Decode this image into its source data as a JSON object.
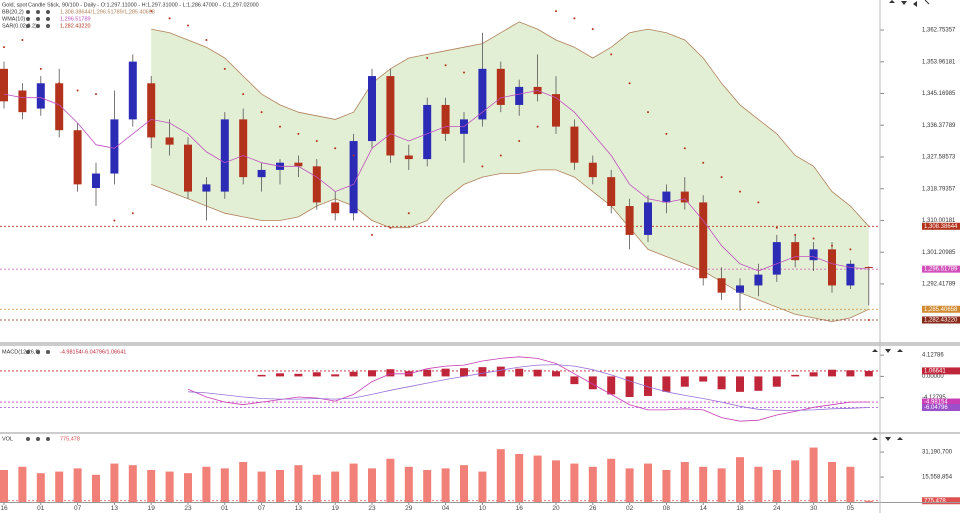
{
  "chart_data": [
    {
      "type": "candlestick",
      "title": "Gold, spot",
      "subtitle": "Candle Stick, 90/100 - Daily - O:1,297.11000 - H:1,297.31000 - L:1,286.47000 - C:1,297.02000",
      "categories": [
        "16",
        null,
        "01",
        null,
        "07",
        null,
        "13",
        null,
        "19",
        null,
        "23",
        null,
        "01",
        null,
        "07",
        null,
        "13",
        null,
        "19",
        null,
        "23",
        null,
        "29",
        null,
        "04",
        null,
        "10",
        null,
        "16",
        null,
        "20",
        null,
        "26",
        null,
        "02",
        null,
        "08",
        null,
        "14",
        null,
        "18",
        null,
        "24",
        null,
        "30",
        null,
        "05",
        null
      ],
      "open": [
        1352,
        1346,
        1341,
        1348,
        1335,
        1319,
        1323,
        1338,
        1348,
        1333,
        1331,
        1318,
        1318,
        1338,
        1322,
        1324,
        1326,
        1325,
        1315,
        1312,
        1332,
        1350,
        1328,
        1327,
        1342,
        1334,
        1338,
        1352,
        1342,
        1347,
        1345,
        1336,
        1326,
        1322,
        1314,
        1306,
        1315,
        1318,
        1315,
        1294,
        1290,
        1292,
        1295,
        1304,
        1299,
        1302,
        1292,
        1297.11
      ],
      "high": [
        1354,
        1348,
        1350,
        1352,
        1337,
        1326,
        1346,
        1356,
        1350,
        1338,
        1333,
        1322,
        1340,
        1341,
        1326,
        1327,
        1328,
        1327,
        1318,
        1334,
        1352,
        1352,
        1331,
        1344,
        1344,
        1340,
        1362,
        1354,
        1349,
        1356,
        1350,
        1338,
        1328,
        1324,
        1316,
        1317,
        1320,
        1322,
        1317,
        1297,
        1294,
        1298,
        1306,
        1306,
        1304,
        1304,
        1299,
        1297.31
      ],
      "low": [
        1341,
        1338,
        1339,
        1333,
        1318,
        1314,
        1320,
        1336,
        1330,
        1328,
        1316,
        1310,
        1316,
        1320,
        1318,
        1320,
        1322,
        1313,
        1310,
        1310,
        1330,
        1326,
        1324,
        1325,
        1332,
        1326,
        1336,
        1340,
        1339,
        1343,
        1334,
        1324,
        1320,
        1312,
        1302,
        1304,
        1312,
        1313,
        1292,
        1288,
        1285,
        1289,
        1293,
        1297,
        1296,
        1290,
        1291,
        1286.47
      ],
      "close": [
        1343,
        1340,
        1348,
        1335,
        1320,
        1323,
        1338,
        1354,
        1333,
        1331,
        1318,
        1320,
        1338,
        1322,
        1324,
        1326,
        1325,
        1315,
        1312,
        1332,
        1350,
        1328,
        1327,
        1342,
        1334,
        1338,
        1352,
        1342,
        1347,
        1345,
        1336,
        1326,
        1322,
        1314,
        1306,
        1315,
        1318,
        1315,
        1294,
        1290,
        1292,
        1295,
        1304,
        1299,
        1302,
        1292,
        1298,
        1297.02
      ],
      "up_color": "#2b2bb5",
      "down_color": "#b3321c",
      "ylim": [
        1276.89,
        1371.07
      ],
      "yticks": [
        {
          "value": 1362.75357,
          "label": "1,362.75357"
        },
        {
          "value": 1353.96181,
          "label": "1,353.96181"
        },
        {
          "value": 1345.16985,
          "label": "1,345.16985"
        },
        {
          "value": 1336.37789,
          "label": "1,336.37789"
        },
        {
          "value": 1327.58573,
          "label": "1,327.58573"
        },
        {
          "value": 1318.79357,
          "label": "1,318.79357"
        },
        {
          "value": 1310.00181,
          "label": "1,310.00181"
        },
        {
          "value": 1301.20985,
          "label": "1,301.20985"
        },
        {
          "value": 1292.41789,
          "label": "1,292.41789"
        }
      ],
      "indicators": [
        {
          "name": "BB(20,2)",
          "value_label": "1,308.38644/1,296.51789/1,285.40658",
          "color": "#b0805a",
          "fill": "#dcebc9",
          "upper": [
            null,
            null,
            null,
            null,
            null,
            null,
            null,
            null,
            1363,
            1362,
            1360,
            1358,
            1355,
            1350,
            1345,
            1342,
            1340,
            1339,
            1338,
            1340,
            1348,
            1352,
            1355,
            1356,
            1357,
            1358,
            1359,
            1362,
            1365,
            1363,
            1360,
            1358,
            1355,
            1358,
            1362,
            1363,
            1362,
            1360,
            1355,
            1348,
            1342,
            1338,
            1334,
            1328,
            1325,
            1318,
            1314,
            1308.38644
          ],
          "lower": [
            null,
            null,
            null,
            null,
            null,
            null,
            null,
            null,
            1320,
            1318,
            1316,
            1314,
            1312,
            1311,
            1310,
            1310,
            1311,
            1314,
            1316,
            1314,
            1310,
            1308,
            1308,
            1310,
            1316,
            1320,
            1322,
            1323,
            1323,
            1324,
            1324,
            1322,
            1318,
            1314,
            1308,
            1302,
            1300,
            1298,
            1296,
            1293,
            1290,
            1288,
            1286,
            1284,
            1283,
            1282,
            1283,
            1285.40658
          ]
        },
        {
          "name": "WMA(10)",
          "value_label": "1,296.51789",
          "color": "#c050c0",
          "values": [
            1345,
            1344,
            1344,
            1342,
            1337,
            1331,
            1330,
            1334,
            1338,
            1337,
            1334,
            1329,
            1326,
            1328,
            1326,
            1325,
            1325,
            1322,
            1318,
            1320,
            1330,
            1334,
            1332,
            1334,
            1336,
            1336,
            1340,
            1344,
            1345,
            1346,
            1344,
            1340,
            1334,
            1328,
            1320,
            1316,
            1315,
            1316,
            1310,
            1303,
            1298,
            1296,
            1298,
            1300,
            1300,
            1298,
            1297,
            1296.51789
          ]
        },
        {
          "name": "SAR(0.02,0.2)",
          "value_label": "1,282.43220",
          "color": "#b3321c",
          "values": [
            1358,
            1360,
            1352,
            1348,
            1346,
            1345,
            1310,
            1312,
            1368,
            1366,
            1364,
            1360,
            1352,
            1345,
            1340,
            1336,
            1334,
            1332,
            1330,
            1328,
            1306,
            1308,
            1312,
            1355,
            1353,
            1351,
            1325,
            1328,
            1332,
            1336,
            1368,
            1366,
            1363,
            1356,
            1348,
            1340,
            1334,
            1330,
            1326,
            1322,
            1318,
            1315,
            1308,
            1306,
            1305,
            1303,
            1302,
            1282.4322
          ]
        }
      ],
      "markers": [
        {
          "value": 1308.38644,
          "label": "1,308.38644",
          "color": "#b3321c"
        },
        {
          "value": 1296.51789,
          "label": "1,296.51789",
          "color": "#d04fb8"
        },
        {
          "value": 1285.40658,
          "label": "1,285.40658",
          "color": "#d08a30"
        },
        {
          "value": 1282.4322,
          "label": "1,282.43220",
          "color": "#8a2a1a"
        }
      ]
    },
    {
      "type": "macd",
      "title": "MACD(12,26,9)",
      "subtitle": "-4.98154/-6.04796/1.06641",
      "ylim": [
        -10.8,
        6.1
      ],
      "yticks": [
        4.12786,
        {
          "value": 0,
          "label": "0.00000"
        },
        -4.12795
      ],
      "series": [
        {
          "name": "histogram",
          "color": "#c0263a",
          "values": [
            null,
            null,
            null,
            null,
            null,
            null,
            null,
            null,
            null,
            null,
            null,
            null,
            null,
            null,
            0.3,
            0.6,
            0.5,
            0.8,
            0.4,
            0.9,
            1.2,
            1.4,
            1.0,
            1.3,
            1.5,
            1.6,
            1.8,
            1.9,
            1.5,
            1.3,
            1.0,
            -1.5,
            -2.5,
            -3.5,
            -4.0,
            -3.8,
            -3.0,
            -2.0,
            -1.0,
            -2.5,
            -3.0,
            -2.8,
            -2.0,
            0.3,
            0.8,
            1.3,
            1.2,
            1.06641
          ]
        },
        {
          "name": "macd",
          "color": "#c83cb4",
          "values": [
            null,
            null,
            null,
            null,
            null,
            null,
            null,
            null,
            null,
            null,
            -2.5,
            -4,
            -5,
            -5.5,
            -5,
            -4.5,
            -4,
            -4.2,
            -4.8,
            -3.5,
            -1,
            0.5,
            0.5,
            1.5,
            2.0,
            2.2,
            3.0,
            3.5,
            3.8,
            3.5,
            2.5,
            0.5,
            -1.5,
            -3.5,
            -5.5,
            -6.5,
            -6.5,
            -6.3,
            -6.5,
            -8,
            -8.7,
            -8.5,
            -7.5,
            -6.8,
            -6,
            -5.5,
            -5,
            -4.98154
          ]
        },
        {
          "name": "signal",
          "color": "#9a70d8",
          "values": [
            null,
            null,
            null,
            null,
            null,
            null,
            null,
            null,
            null,
            null,
            -3,
            -3.2,
            -3.6,
            -4,
            -4.3,
            -4.4,
            -4.4,
            -4.3,
            -4.4,
            -4.2,
            -3.5,
            -2.7,
            -2,
            -1.3,
            -0.6,
            0,
            0.6,
            1.2,
            1.8,
            2.2,
            2.3,
            2.0,
            1.3,
            0.3,
            -0.9,
            -2,
            -3,
            -3.7,
            -4.3,
            -5,
            -5.8,
            -6.4,
            -6.6,
            -6.6,
            -6.5,
            -6.3,
            -6.2,
            -6.04796
          ]
        }
      ],
      "markers": [
        {
          "value": 1.06641,
          "label": "1.06641",
          "color": "#c0263a"
        },
        {
          "value": -4.98154,
          "label": "-4.98154",
          "color": "#c83cb4"
        },
        {
          "value": -6.04796,
          "label": "-6.04796",
          "color": "#9a50c8"
        }
      ]
    },
    {
      "type": "bar",
      "title": "VOL",
      "subtitle": "775,478",
      "color": "#f08078",
      "values": [
        20000000,
        22000000,
        18000000,
        19000000,
        21000000,
        17000000,
        24000000,
        23000000,
        20000000,
        19000000,
        18000000,
        22000000,
        21000000,
        25000000,
        19000000,
        20000000,
        23000000,
        17000000,
        19000000,
        24000000,
        21000000,
        27000000,
        22000000,
        20000000,
        21000000,
        23000000,
        19000000,
        33000000,
        30000000,
        29000000,
        26000000,
        24000000,
        22000000,
        27000000,
        21000000,
        24000000,
        20000000,
        25000000,
        22000000,
        21000000,
        28000000,
        22000000,
        20000000,
        26000000,
        34000000,
        25000000,
        22000000,
        775478
      ],
      "ylim": [
        0,
        43100000
      ],
      "yticks": [
        {
          "value": 31190700,
          "label": "31,190,700"
        },
        {
          "value": 15558854,
          "label": "15,558,854"
        }
      ],
      "markers": [
        {
          "value": 775478,
          "label": "775,478",
          "color": "#e05050"
        }
      ]
    }
  ]
}
